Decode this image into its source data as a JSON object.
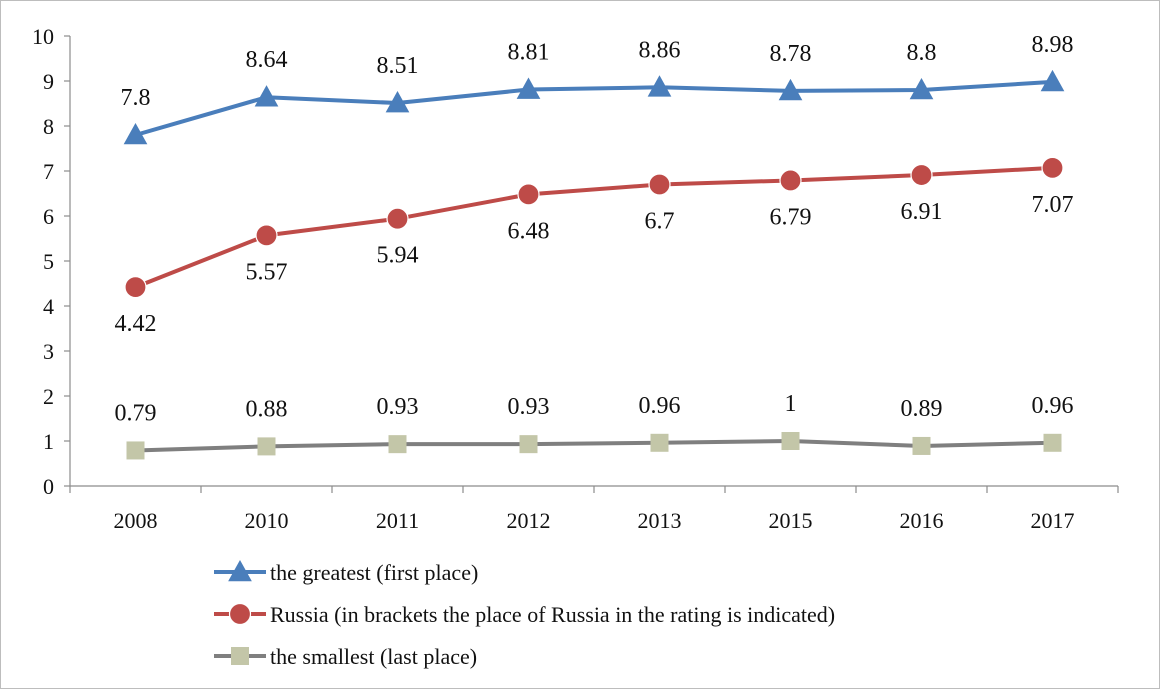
{
  "chart_data": {
    "type": "line",
    "title": "",
    "xlabel": "",
    "ylabel": "",
    "categories": [
      "2008",
      "2010",
      "2011",
      "2012",
      "2013",
      "2015",
      "2016",
      "2017"
    ],
    "ylim": [
      0,
      10
    ],
    "yticks": [
      "0",
      "1",
      "2",
      "3",
      "4",
      "5",
      "6",
      "7",
      "8",
      "9",
      "10"
    ],
    "grid": false,
    "legend_position": "bottom",
    "series": [
      {
        "name": "the greatest (first place)",
        "color": "#4a7ebb",
        "marker": "triangle",
        "label_position": "above",
        "values": [
          7.8,
          8.64,
          8.51,
          8.81,
          8.86,
          8.78,
          8.8,
          8.98
        ],
        "labels": [
          "7.8",
          "8.64",
          "8.51",
          "8.81",
          "8.86",
          "8.78",
          "8.8",
          "8.98"
        ]
      },
      {
        "name": "Russia (in brackets the place of Russia in the rating is indicated)",
        "color": "#be4b48",
        "marker": "circle",
        "label_position": "below",
        "values": [
          4.42,
          5.57,
          5.94,
          6.48,
          6.7,
          6.79,
          6.91,
          7.07
        ],
        "labels": [
          "4.42",
          "5.57",
          "5.94",
          "6.48",
          "6.7",
          "6.79",
          "6.91",
          "7.07"
        ]
      },
      {
        "name": "the smallest (last place)",
        "color": "#7f7f7f",
        "marker_color": "#c3c6a8",
        "marker": "square",
        "label_position": "above",
        "values": [
          0.79,
          0.88,
          0.93,
          0.93,
          0.96,
          1,
          0.89,
          0.96
        ],
        "labels": [
          "0.79",
          "0.88",
          "0.93",
          "0.93",
          "0.96",
          "1",
          "0.89",
          "0.96"
        ]
      }
    ]
  }
}
